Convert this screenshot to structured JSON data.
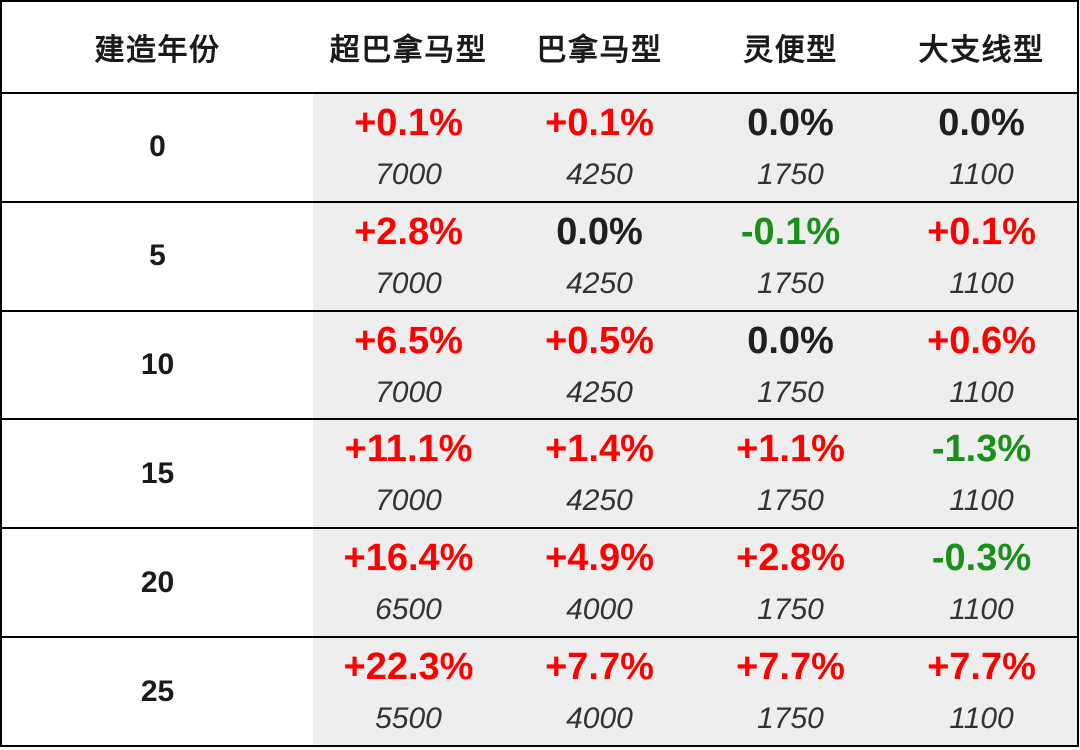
{
  "colors": {
    "positive": "#ff0000",
    "negative": "#1a8f1a",
    "zero": "#1f1f1f",
    "value_text": "#333333",
    "cell_background": "#eeeeee",
    "grid_line": "#000000"
  },
  "chart_data": {
    "type": "table",
    "columns": [
      "建造年份",
      "超巴拿马型",
      "巴拿马型",
      "灵便型",
      "大支线型"
    ],
    "rows": [
      {
        "label": 0,
        "cells": [
          {
            "change": "+0.1%",
            "value": 7000
          },
          {
            "change": "+0.1%",
            "value": 4250
          },
          {
            "change": "0.0%",
            "value": 1750
          },
          {
            "change": "0.0%",
            "value": 1100
          }
        ]
      },
      {
        "label": 5,
        "cells": [
          {
            "change": "+2.8%",
            "value": 7000
          },
          {
            "change": "0.0%",
            "value": 4250
          },
          {
            "change": "-0.1%",
            "value": 1750
          },
          {
            "change": "+0.1%",
            "value": 1100
          }
        ]
      },
      {
        "label": 10,
        "cells": [
          {
            "change": "+6.5%",
            "value": 7000
          },
          {
            "change": "+0.5%",
            "value": 4250
          },
          {
            "change": "0.0%",
            "value": 1750
          },
          {
            "change": "+0.6%",
            "value": 1100
          }
        ]
      },
      {
        "label": 15,
        "cells": [
          {
            "change": "+11.1%",
            "value": 7000
          },
          {
            "change": "+1.4%",
            "value": 4250
          },
          {
            "change": "+1.1%",
            "value": 1750
          },
          {
            "change": "-1.3%",
            "value": 1100
          }
        ]
      },
      {
        "label": 20,
        "cells": [
          {
            "change": "+16.4%",
            "value": 6500
          },
          {
            "change": "+4.9%",
            "value": 4000
          },
          {
            "change": "+2.8%",
            "value": 1750
          },
          {
            "change": "-0.3%",
            "value": 1100
          }
        ]
      },
      {
        "label": 25,
        "cells": [
          {
            "change": "+22.3%",
            "value": 5500
          },
          {
            "change": "+7.7%",
            "value": 4000
          },
          {
            "change": "+7.7%",
            "value": 1750
          },
          {
            "change": "+7.7%",
            "value": 1100
          }
        ]
      }
    ]
  }
}
